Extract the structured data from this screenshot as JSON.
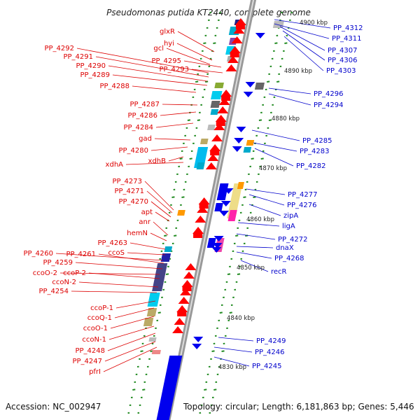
{
  "title": "Pseudomonas putida KT2440, complete genome",
  "footer": {
    "accession": "Accession: NC_002947",
    "topology": "Topology: circular; Length: 6,181,863 bp; Genes: 5,446"
  },
  "colors": {
    "reverse_strand_labels": "#dd0000",
    "forward_strand_labels": "#0000cc",
    "ticks": "#228b22",
    "backbone": "#999999"
  },
  "scale_labels": [
    "4900 kbp",
    "4890 kbp",
    "4880 kbp",
    "4870 kbp",
    "4860 kbp",
    "4850 kbp",
    "4840 kbp",
    "4830 kbp"
  ],
  "left_labels": [
    "glxR",
    "hyi",
    "gcl",
    "PP_4295",
    "PP_4293",
    "PP_4292",
    "PP_4291",
    "PP_4290",
    "PP_4289",
    "PP_4288",
    "PP_4287",
    "PP_4286",
    "PP_4284",
    "gad",
    "PP_4280",
    "xdhB",
    "xdhA",
    "PP_4273",
    "PP_4271",
    "PP_4270",
    "apt",
    "anr",
    "hemN",
    "PP_4263",
    "ccoS",
    "PP_4260",
    "PP_4261",
    "PP_4259",
    "ccoO-2",
    "ccoP-2",
    "ccoN-2",
    "PP_4254",
    "ccoP-1",
    "ccoQ-1",
    "ccoO-1",
    "ccoN-1",
    "PP_4248",
    "PP_4247",
    "pfrI"
  ],
  "right_labels": [
    "PP_4312",
    "PP_4311",
    "PP_4307",
    "PP_4306",
    "PP_4303",
    "PP_4296",
    "PP_4294",
    "PP_4285",
    "PP_4283",
    "PP_4282",
    "PP_4277",
    "PP_4276",
    "zipA",
    "ligA",
    "PP_4272",
    "dnaX",
    "PP_4268",
    "recR",
    "PP_4249",
    "PP_4246",
    "PP_4245"
  ]
}
